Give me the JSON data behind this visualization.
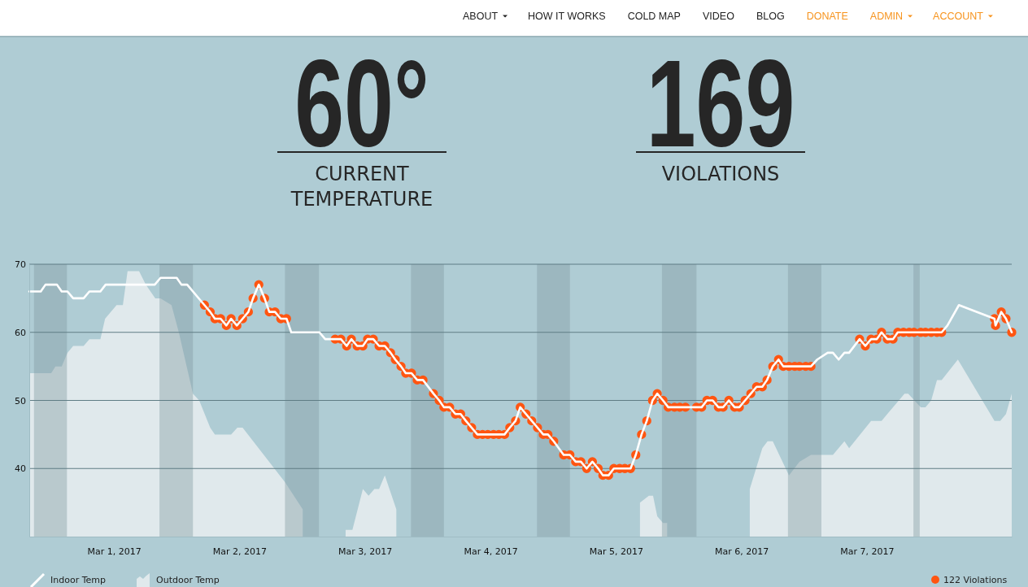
{
  "chart_data": {
    "type": "line",
    "annotations": [
      "ABOUT",
      "HOW IT WORKS",
      "COLD MAP",
      "VIDEO",
      "BLOG",
      "DONATE",
      "ADMIN",
      "ACCOUNT",
      "60°",
      "CURRENT TEMPERATURE",
      "169",
      "VIOLATIONS"
    ],
    "xlim": [
      "2017-02-28T07:48",
      "2017-03-08T03:42"
    ],
    "xticks": [
      {
        "value": "2017-03-01",
        "label": "Mar 1, 2017"
      },
      {
        "value": "2017-03-02",
        "label": "Mar 2, 2017"
      },
      {
        "value": "2017-03-03",
        "label": "Mar 3, 2017"
      },
      {
        "value": "2017-03-04",
        "label": "Mar 4, 2017"
      },
      {
        "value": "2017-03-05",
        "label": "Mar 5, 2017"
      },
      {
        "value": "2017-03-06",
        "label": "Mar 6, 2017"
      },
      {
        "value": "2017-03-07",
        "label": "Mar 7, 2017"
      }
    ],
    "ylim": [
      30,
      70
    ],
    "yticks": [
      40,
      50,
      60,
      70
    ],
    "grid": "y",
    "legend": "bottom",
    "bands": [
      {
        "axis": "x",
        "from": "2017-02-28T08:42",
        "to": "2017-02-28T15:00",
        "color": "#7f989f"
      },
      {
        "axis": "x",
        "from": "2017-03-01T08:42",
        "to": "2017-03-01T15:06",
        "color": "#7f989f"
      },
      {
        "axis": "x",
        "from": "2017-03-02T08:42",
        "to": "2017-03-02T15:12",
        "color": "#7f989f"
      },
      {
        "axis": "x",
        "from": "2017-03-03T08:48",
        "to": "2017-03-03T15:06",
        "color": "#7f989f"
      },
      {
        "axis": "x",
        "from": "2017-03-04T08:54",
        "to": "2017-03-04T15:12",
        "color": "#7f989f"
      },
      {
        "axis": "x",
        "from": "2017-03-05T08:48",
        "to": "2017-03-05T15:24",
        "color": "#7f989f"
      },
      {
        "axis": "x",
        "from": "2017-03-06T08:54",
        "to": "2017-03-06T15:18",
        "color": "#7f989f"
      },
      {
        "axis": "x",
        "from": "2017-03-07T08:54",
        "to": "2017-03-07T10:06",
        "color": "#7f989f"
      }
    ],
    "series": [
      {
        "name": "Indoor Temp",
        "color": "#ffffff",
        "x": [
          "2017-02-28T07:48",
          "2017-02-28T10:00",
          "2017-02-28T10:54",
          "2017-02-28T13:06",
          "2017-02-28T14:00",
          "2017-02-28T15:06",
          "2017-02-28T16:12",
          "2017-02-28T18:12",
          "2017-02-28T19:18",
          "2017-02-28T21:24",
          "2017-02-28T22:24",
          "2017-03-01T07:48",
          "2017-03-01T08:54",
          "2017-03-01T12:00",
          "2017-03-01T12:54",
          "2017-03-01T14:00",
          "2017-03-01T17:18",
          "2017-03-01T18:24",
          "2017-03-01T19:18",
          "2017-03-01T20:24",
          "2017-03-01T21:30",
          "2017-03-01T22:24",
          "2017-03-01T23:30",
          "2017-03-02T00:36",
          "2017-03-02T01:42",
          "2017-03-02T02:36",
          "2017-03-02T03:42",
          "2017-03-02T04:48",
          "2017-03-02T05:42",
          "2017-03-02T06:48",
          "2017-03-02T07:54",
          "2017-03-02T09:00",
          "2017-03-02T09:54",
          "2017-03-02T15:18",
          "2017-03-02T16:24",
          "2017-03-02T18:18",
          "2017-03-02T19:24",
          "2017-03-02T20:30",
          "2017-03-02T21:24",
          "2017-03-02T22:30",
          "2017-03-02T23:36",
          "2017-03-03T00:30",
          "2017-03-03T01:36",
          "2017-03-03T02:42",
          "2017-03-03T03:48",
          "2017-03-03T04:54",
          "2017-03-03T05:48",
          "2017-03-03T06:54",
          "2017-03-03T07:48",
          "2017-03-03T08:54",
          "2017-03-03T10:00",
          "2017-03-03T11:06",
          "2017-03-03T13:06",
          "2017-03-03T14:12",
          "2017-03-03T15:06",
          "2017-03-03T16:12",
          "2017-03-03T17:18",
          "2017-03-03T18:18",
          "2017-03-03T19:18",
          "2017-03-03T20:24",
          "2017-03-03T21:30",
          "2017-03-03T22:30",
          "2017-03-03T23:30",
          "2017-03-04T00:36",
          "2017-03-04T01:36",
          "2017-03-04T02:42",
          "2017-03-04T03:42",
          "2017-03-04T04:48",
          "2017-03-04T05:42",
          "2017-03-04T06:48",
          "2017-03-04T07:54",
          "2017-03-04T09:00",
          "2017-03-04T10:06",
          "2017-03-04T11:00",
          "2017-03-04T12:06",
          "2017-03-04T14:00",
          "2017-03-04T15:12",
          "2017-03-04T16:18",
          "2017-03-04T17:18",
          "2017-03-04T18:24",
          "2017-03-04T19:30",
          "2017-03-04T20:36",
          "2017-03-04T21:30",
          "2017-03-04T22:36",
          "2017-03-04T23:36",
          "2017-03-05T00:42",
          "2017-03-05T01:42",
          "2017-03-05T02:48",
          "2017-03-05T03:48",
          "2017-03-05T04:54",
          "2017-03-05T05:54",
          "2017-03-05T07:00",
          "2017-03-05T07:54",
          "2017-03-05T09:00",
          "2017-03-05T10:00",
          "2017-03-05T11:12",
          "2017-03-05T12:12",
          "2017-03-05T13:18",
          "2017-03-05T15:24",
          "2017-03-05T16:24",
          "2017-03-05T17:24",
          "2017-03-05T18:30",
          "2017-03-05T19:36",
          "2017-03-05T20:30",
          "2017-03-05T21:36",
          "2017-03-05T22:42",
          "2017-03-05T23:36",
          "2017-03-06T00:42",
          "2017-03-06T01:48",
          "2017-03-06T02:54",
          "2017-03-06T04:00",
          "2017-03-06T04:54",
          "2017-03-06T06:00",
          "2017-03-06T07:06",
          "2017-03-06T08:00",
          "2017-03-06T09:06",
          "2017-03-06T10:12",
          "2017-03-06T11:06",
          "2017-03-06T12:18",
          "2017-03-06T13:18",
          "2017-03-06T14:30",
          "2017-03-06T16:30",
          "2017-03-06T17:30",
          "2017-03-06T18:36",
          "2017-03-06T19:42",
          "2017-03-06T20:36",
          "2017-03-06T22:36",
          "2017-03-06T23:42",
          "2017-03-07T00:48",
          "2017-03-07T01:54",
          "2017-03-07T02:48",
          "2017-03-07T03:54",
          "2017-03-07T05:00",
          "2017-03-07T05:54",
          "2017-03-07T07:00",
          "2017-03-07T08:06",
          "2017-03-07T09:00",
          "2017-03-07T10:18",
          "2017-03-07T11:12",
          "2017-03-07T12:18",
          "2017-03-07T13:24",
          "2017-03-07T14:18",
          "2017-03-07T15:24",
          "2017-03-07T17:36",
          "2017-03-08T00:24",
          "2017-03-08T00:36",
          "2017-03-08T01:42",
          "2017-03-08T02:36",
          "2017-03-08T03:42"
        ],
        "values": [
          66,
          66,
          67,
          67,
          66,
          66,
          65,
          65,
          66,
          66,
          67,
          67,
          68,
          68,
          67,
          67,
          64,
          63,
          62,
          62,
          61,
          62,
          61,
          62,
          63,
          65,
          67,
          65,
          63,
          63,
          62,
          62,
          60,
          60,
          59,
          59,
          59,
          58,
          59,
          58,
          58,
          59,
          59,
          58,
          58,
          57,
          56,
          55,
          54,
          54,
          53,
          53,
          51,
          50,
          49,
          49,
          48,
          48,
          47,
          46,
          45,
          45,
          45,
          45,
          45,
          45,
          46,
          47,
          49,
          48,
          47,
          46,
          45,
          45,
          44,
          42,
          42,
          41,
          41,
          40,
          41,
          40,
          39,
          39,
          40,
          40,
          40,
          40,
          42,
          45,
          47,
          50,
          51,
          50,
          49,
          49,
          49,
          49,
          49,
          49,
          50,
          50,
          49,
          49,
          50,
          49,
          49,
          50,
          51,
          52,
          52,
          53,
          55,
          56,
          55,
          55,
          55,
          55,
          55,
          55,
          56,
          57,
          57,
          56,
          57,
          57,
          59,
          58,
          59,
          59,
          60,
          59,
          59,
          60,
          60,
          60,
          60,
          60,
          60,
          60,
          60,
          60,
          61,
          64,
          62,
          61,
          63,
          62,
          60
        ]
      },
      {
        "name": "Outdoor Temp",
        "type": "area",
        "color": "#e0e9ec",
        "x": [
          "2017-02-28T07:48",
          "2017-02-28T12:00",
          "2017-02-28T12:48",
          "2017-02-28T14:00",
          "2017-02-28T15:06",
          "2017-02-28T16:12",
          "2017-02-28T18:12",
          "2017-02-28T19:18",
          "2017-02-28T21:24",
          "2017-02-28T22:18",
          "2017-03-01T00:30",
          "2017-03-01T01:42",
          "2017-03-01T02:36",
          "2017-03-01T04:48",
          "2017-03-01T06:06",
          "2017-03-01T07:54",
          "2017-03-01T08:54",
          "2017-03-01T11:00",
          "2017-03-01T12:24",
          "2017-03-01T15:06",
          "2017-03-01T16:18",
          "2017-03-01T18:24",
          "2017-03-01T19:18",
          "2017-03-01T22:24",
          "2017-03-01T23:36",
          "2017-03-02T00:36",
          "2017-03-02T08:42",
          "2017-03-02T12:06",
          "2017-03-02T16:06",
          "2017-03-02T19:30",
          "2017-03-02T20:18",
          "2017-03-02T21:36",
          "2017-03-02T23:36",
          "2017-03-03T00:42",
          "2017-03-03T01:48",
          "2017-03-03T02:42",
          "2017-03-03T03:48",
          "2017-03-03T06:00",
          "2017-03-03T08:18",
          "2017-03-05T02:18",
          "2017-03-05T04:36",
          "2017-03-05T06:18",
          "2017-03-05T07:06",
          "2017-03-05T07:54",
          "2017-03-05T09:00",
          "2017-03-05T09:48",
          "2017-03-05T12:06",
          "2017-03-05T23:18",
          "2017-03-06T01:36",
          "2017-03-06T04:00",
          "2017-03-06T05:00",
          "2017-03-06T06:00",
          "2017-03-06T09:06",
          "2017-03-06T11:06",
          "2017-03-06T13:18",
          "2017-03-06T17:30",
          "2017-03-06T19:42",
          "2017-03-06T20:36",
          "2017-03-07T00:48",
          "2017-03-07T02:48",
          "2017-03-07T07:12",
          "2017-03-07T07:54",
          "2017-03-07T10:18",
          "2017-03-07T11:12",
          "2017-03-07T12:18",
          "2017-03-07T13:24",
          "2017-03-07T14:18",
          "2017-03-07T17:24",
          "2017-03-08T00:24",
          "2017-03-08T01:30",
          "2017-03-08T02:36",
          "2017-03-08T03:42"
        ],
        "values": [
          54,
          54,
          55,
          55,
          57,
          58,
          58,
          59,
          59,
          62,
          64,
          64,
          69,
          69,
          67,
          65,
          65,
          64,
          60,
          51,
          50,
          46,
          45,
          45,
          46,
          46,
          38,
          34,
          null,
          null,
          31,
          31,
          37,
          36,
          37,
          37,
          39,
          34,
          null,
          null,
          35,
          36,
          36,
          33,
          32,
          32,
          null,
          null,
          37,
          43,
          44,
          44,
          39,
          41,
          42,
          42,
          44,
          43,
          47,
          47,
          51,
          51,
          49,
          49,
          50,
          53,
          53,
          56,
          47,
          47,
          48,
          51
        ]
      },
      {
        "name": "122 Violations",
        "type": "scatter",
        "color": "#ff5511",
        "marker": "circle",
        "x": [
          "2017-03-01T17:18",
          "2017-03-01T18:24",
          "2017-03-01T19:18",
          "2017-03-01T20:24",
          "2017-03-01T21:30",
          "2017-03-01T22:24",
          "2017-03-01T23:30",
          "2017-03-02T00:36",
          "2017-03-02T01:42",
          "2017-03-02T02:36",
          "2017-03-02T03:42",
          "2017-03-02T04:48",
          "2017-03-02T05:42",
          "2017-03-02T06:48",
          "2017-03-02T07:54",
          "2017-03-02T09:00",
          "2017-03-02T18:18",
          "2017-03-02T19:24",
          "2017-03-02T20:30",
          "2017-03-02T21:24",
          "2017-03-02T22:30",
          "2017-03-02T23:36",
          "2017-03-03T00:30",
          "2017-03-03T01:36",
          "2017-03-03T02:42",
          "2017-03-03T03:48",
          "2017-03-03T04:54",
          "2017-03-03T05:48",
          "2017-03-03T06:54",
          "2017-03-03T07:48",
          "2017-03-03T08:54",
          "2017-03-03T10:00",
          "2017-03-03T11:06",
          "2017-03-03T13:06",
          "2017-03-03T14:12",
          "2017-03-03T15:06",
          "2017-03-03T16:12",
          "2017-03-03T17:18",
          "2017-03-03T18:18",
          "2017-03-03T19:18",
          "2017-03-03T20:24",
          "2017-03-03T21:30",
          "2017-03-03T22:30",
          "2017-03-03T23:30",
          "2017-03-04T00:36",
          "2017-03-04T01:36",
          "2017-03-04T02:42",
          "2017-03-04T03:42",
          "2017-03-04T04:48",
          "2017-03-04T05:42",
          "2017-03-04T06:48",
          "2017-03-04T07:54",
          "2017-03-04T09:00",
          "2017-03-04T10:06",
          "2017-03-04T11:00",
          "2017-03-04T12:06",
          "2017-03-04T14:00",
          "2017-03-04T15:12",
          "2017-03-04T16:18",
          "2017-03-04T17:18",
          "2017-03-04T18:24",
          "2017-03-04T19:30",
          "2017-03-04T20:36",
          "2017-03-04T21:30",
          "2017-03-04T22:36",
          "2017-03-04T23:36",
          "2017-03-05T00:42",
          "2017-03-05T01:42",
          "2017-03-05T02:48",
          "2017-03-05T03:48",
          "2017-03-05T04:54",
          "2017-03-05T05:54",
          "2017-03-05T07:00",
          "2017-03-05T07:54",
          "2017-03-05T09:00",
          "2017-03-05T10:00",
          "2017-03-05T11:12",
          "2017-03-05T12:12",
          "2017-03-05T13:18",
          "2017-03-05T15:24",
          "2017-03-05T16:24",
          "2017-03-05T17:24",
          "2017-03-05T18:30",
          "2017-03-05T19:36",
          "2017-03-05T20:30",
          "2017-03-05T21:36",
          "2017-03-05T22:42",
          "2017-03-05T23:36",
          "2017-03-06T00:42",
          "2017-03-06T01:48",
          "2017-03-06T02:54",
          "2017-03-06T04:00",
          "2017-03-06T04:54",
          "2017-03-06T06:00",
          "2017-03-06T07:06",
          "2017-03-06T08:00",
          "2017-03-06T09:06",
          "2017-03-06T10:12",
          "2017-03-06T11:06",
          "2017-03-06T12:18",
          "2017-03-06T13:18",
          "2017-03-06T22:36",
          "2017-03-06T23:42",
          "2017-03-07T00:48",
          "2017-03-07T01:54",
          "2017-03-07T02:48",
          "2017-03-07T03:54",
          "2017-03-07T05:00",
          "2017-03-07T05:54",
          "2017-03-07T07:00",
          "2017-03-07T08:06",
          "2017-03-07T09:00",
          "2017-03-07T10:18",
          "2017-03-07T11:12",
          "2017-03-07T12:18",
          "2017-03-07T13:24",
          "2017-03-07T14:18",
          "2017-03-08T00:24",
          "2017-03-08T00:36",
          "2017-03-08T01:42",
          "2017-03-08T02:36",
          "2017-03-08T03:42"
        ],
        "values": [
          64,
          63,
          62,
          62,
          61,
          62,
          61,
          62,
          63,
          65,
          67,
          65,
          63,
          63,
          62,
          62,
          59,
          59,
          58,
          59,
          58,
          58,
          59,
          59,
          58,
          58,
          57,
          56,
          55,
          54,
          54,
          53,
          53,
          51,
          50,
          49,
          49,
          48,
          48,
          47,
          46,
          45,
          45,
          45,
          45,
          45,
          45,
          46,
          47,
          49,
          48,
          47,
          46,
          45,
          45,
          44,
          42,
          42,
          41,
          41,
          40,
          41,
          40,
          39,
          39,
          40,
          40,
          40,
          40,
          42,
          45,
          47,
          50,
          51,
          50,
          49,
          49,
          49,
          49,
          49,
          49,
          50,
          50,
          49,
          49,
          50,
          49,
          49,
          50,
          51,
          52,
          52,
          53,
          55,
          56,
          55,
          55,
          55,
          55,
          55,
          55,
          59,
          58,
          59,
          59,
          60,
          59,
          59,
          60,
          60,
          60,
          60,
          60,
          60,
          60,
          60,
          60,
          62,
          61,
          63,
          62,
          60
        ]
      }
    ]
  }
}
